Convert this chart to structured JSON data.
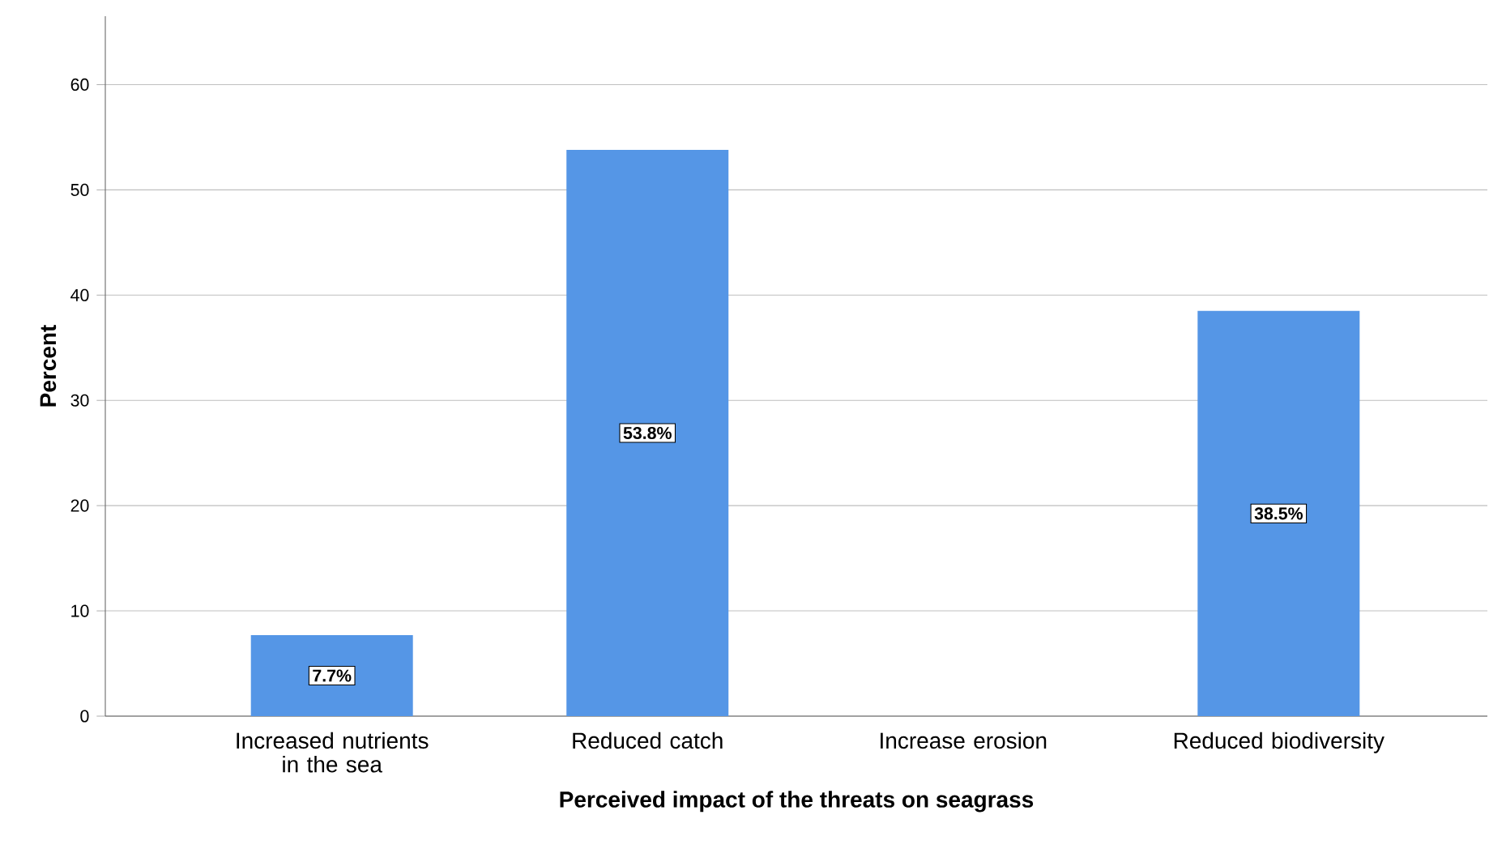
{
  "chart_data": {
    "type": "bar",
    "xlabel": "Perceived impact of the threats on seagrass",
    "ylabel": "Percent",
    "categories": [
      "Increased nutrients in the sea",
      "Reduced catch",
      "Increase erosion",
      "Reduced biodiversity"
    ],
    "values": [
      7.7,
      53.8,
      0,
      38.5
    ],
    "value_labels": [
      "7.7%",
      "53.8%",
      null,
      "38.5%"
    ],
    "color": "#5596e6",
    "ylim": [
      0,
      66.5
    ],
    "yticks": [
      0,
      10,
      20,
      30,
      40,
      50,
      60
    ],
    "grid": "y"
  }
}
